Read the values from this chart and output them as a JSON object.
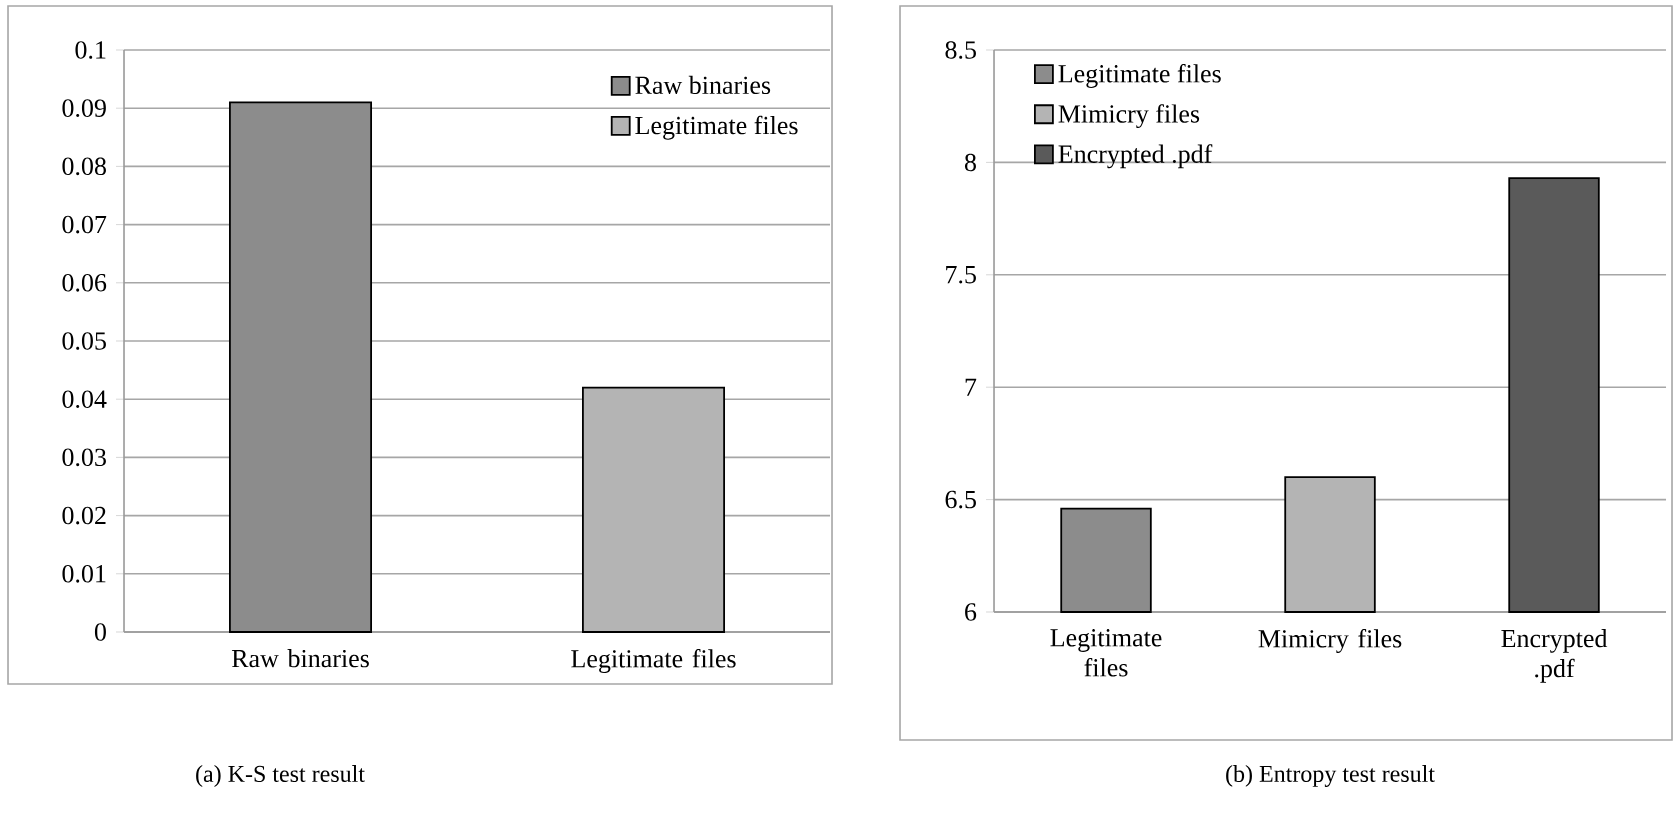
{
  "chart_data": [
    {
      "type": "bar",
      "title": "(a) K-S test result",
      "categories": [
        "Raw binaries",
        "Legitimate files"
      ],
      "series": [
        {
          "name": "Raw binaries",
          "color": "#8c8c8c",
          "values": [
            0.091,
            null
          ]
        },
        {
          "name": "Legitimate files",
          "color": "#b4b4b4",
          "values": [
            null,
            0.042
          ]
        }
      ],
      "ylim": [
        0,
        0.1
      ],
      "yticks": [
        0,
        0.01,
        0.02,
        0.03,
        0.04,
        0.05,
        0.06,
        0.07,
        0.08,
        0.09,
        0.1
      ],
      "grid": "y",
      "legend": "top right"
    },
    {
      "type": "bar",
      "title": "(b) Entropy test result",
      "categories": [
        "Legitimate files",
        "Mimicry files",
        "Encrypted .pdf"
      ],
      "series": [
        {
          "name": "Legitimate files",
          "color": "#8c8c8c",
          "values": [
            6.46,
            null,
            null
          ]
        },
        {
          "name": "Mimicry files",
          "color": "#b4b4b4",
          "values": [
            null,
            6.6,
            null
          ]
        },
        {
          "name": "Encrypted .pdf",
          "color": "#5a5a5a",
          "values": [
            null,
            null,
            7.93
          ]
        }
      ],
      "ylim": [
        6,
        8.5
      ],
      "yticks": [
        6,
        6.5,
        7,
        7.5,
        8,
        8.5
      ],
      "grid": "y",
      "legend": "top left"
    }
  ]
}
